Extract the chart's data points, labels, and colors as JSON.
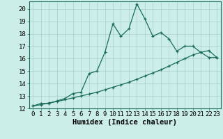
{
  "xlabel": "Humidex (Indice chaleur)",
  "ylabel": "",
  "bg_color": "#cceee8",
  "line_color": "#1a6b5a",
  "grid_color": "#aacccc",
  "xlim": [
    -0.5,
    23.5
  ],
  "ylim": [
    12,
    20.6
  ],
  "yticks": [
    12,
    13,
    14,
    15,
    16,
    17,
    18,
    19,
    20
  ],
  "xticks": [
    0,
    1,
    2,
    3,
    4,
    5,
    6,
    7,
    8,
    9,
    10,
    11,
    12,
    13,
    14,
    15,
    16,
    17,
    18,
    19,
    20,
    21,
    22,
    23
  ],
  "line1_x": [
    0,
    1,
    2,
    3,
    4,
    5,
    6,
    7,
    8,
    9,
    10,
    11,
    12,
    13,
    14,
    15,
    16,
    17,
    18,
    19,
    20,
    21,
    22,
    23
  ],
  "line1_y": [
    12.2,
    12.4,
    12.4,
    12.6,
    12.8,
    13.2,
    13.3,
    14.8,
    15.0,
    16.5,
    18.8,
    17.8,
    18.4,
    20.4,
    19.2,
    17.8,
    18.1,
    17.6,
    16.6,
    17.0,
    17.0,
    16.5,
    16.1,
    16.1
  ],
  "line2_x": [
    0,
    1,
    2,
    3,
    4,
    5,
    6,
    7,
    8,
    9,
    10,
    11,
    12,
    13,
    14,
    15,
    16,
    17,
    18,
    19,
    20,
    21,
    22,
    23
  ],
  "line2_y": [
    12.2,
    12.3,
    12.45,
    12.55,
    12.7,
    12.85,
    13.0,
    13.15,
    13.3,
    13.5,
    13.7,
    13.9,
    14.1,
    14.35,
    14.6,
    14.85,
    15.1,
    15.4,
    15.7,
    16.0,
    16.3,
    16.5,
    16.65,
    16.1
  ],
  "tick_fontsize": 6.5,
  "label_fontsize": 7.5
}
